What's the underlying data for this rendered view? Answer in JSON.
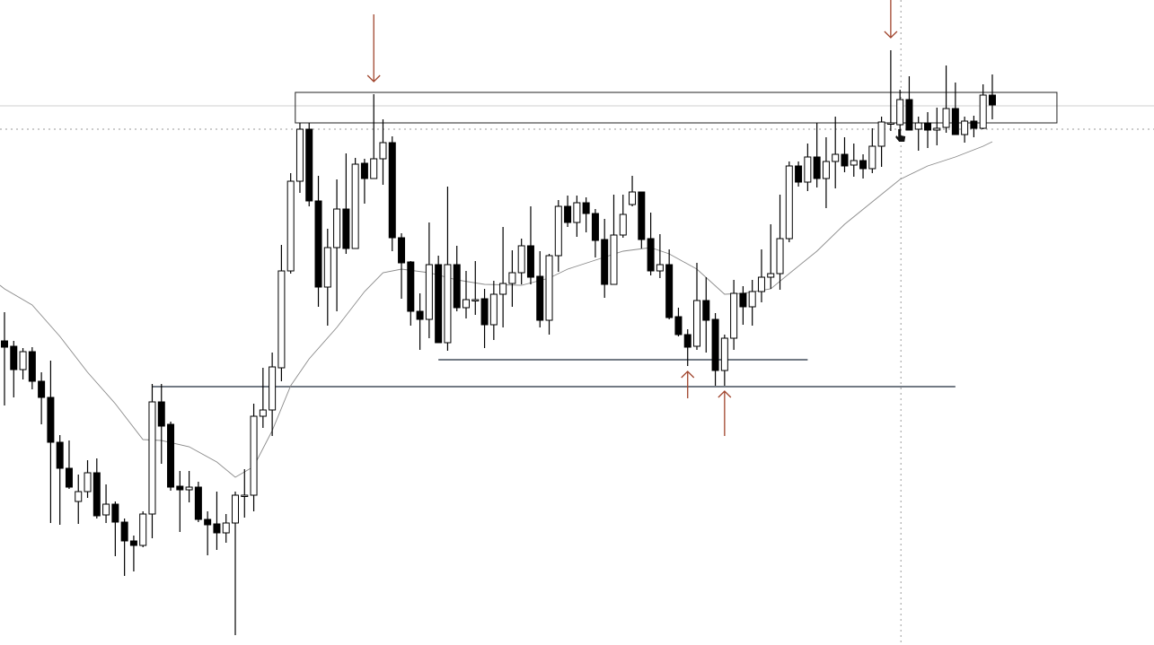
{
  "chart_data": {
    "type": "candlestick",
    "title": "",
    "xlabel": "",
    "ylabel": "",
    "grid": false,
    "colors": {
      "bull_body": "#ffffff",
      "bear_body": "#000000",
      "wick": "#000000",
      "moving_average": "#8a8a8a",
      "annotation_arrow": "#a0442c",
      "level_line": "#1f2a3a",
      "dotted_line": "#9a9a9a"
    },
    "candles_ohlc": [
      [
        340,
        372,
        268,
        333
      ],
      [
        334,
        340,
        277,
        308
      ],
      [
        308,
        332,
        297,
        328
      ],
      [
        328,
        333,
        286,
        295
      ],
      [
        295,
        305,
        247,
        277
      ],
      [
        277,
        318,
        137,
        227
      ],
      [
        227,
        235,
        135,
        198
      ],
      [
        198,
        229,
        175,
        177
      ],
      [
        161,
        191,
        136,
        172
      ],
      [
        172,
        207,
        165,
        193
      ],
      [
        193,
        209,
        142,
        145
      ],
      [
        146,
        180,
        137,
        158
      ],
      [
        158,
        161,
        100,
        138
      ],
      [
        138,
        142,
        78,
        117
      ],
      [
        117,
        123,
        83,
        112
      ],
      [
        112,
        150,
        110,
        147
      ],
      [
        147,
        292,
        120,
        272
      ],
      [
        272,
        292,
        203,
        245
      ],
      [
        247,
        250,
        173,
        177
      ],
      [
        178,
        195,
        127,
        174
      ],
      [
        174,
        195,
        160,
        177
      ],
      [
        177,
        183,
        138,
        141
      ],
      [
        141,
        150,
        101,
        135
      ],
      [
        136,
        172,
        107,
        126
      ],
      [
        126,
        147,
        115,
        137
      ],
      [
        137,
        172,
        12,
        168
      ],
      [
        168,
        197,
        143,
        168
      ],
      [
        168,
        270,
        150,
        256
      ],
      [
        256,
        310,
        243,
        263
      ],
      [
        263,
        327,
        234,
        311
      ],
      [
        310,
        447,
        295,
        418
      ],
      [
        418,
        527,
        415,
        518
      ],
      [
        518,
        583,
        505,
        576
      ],
      [
        576,
        583,
        490,
        496
      ],
      [
        496,
        524,
        378,
        400
      ],
      [
        400,
        465,
        357,
        444
      ],
      [
        444,
        520,
        373,
        487
      ],
      [
        487,
        549,
        437,
        443
      ],
      [
        443,
        544,
        443,
        537
      ],
      [
        538,
        543,
        493,
        521
      ],
      [
        521,
        615,
        521,
        543
      ],
      [
        543,
        587,
        514,
        561
      ],
      [
        561,
        568,
        440,
        455
      ],
      [
        455,
        460,
        387,
        427
      ],
      [
        428,
        429,
        357,
        373
      ],
      [
        373,
        393,
        330,
        364
      ],
      [
        364,
        472,
        343,
        425
      ],
      [
        425,
        435,
        338,
        338
      ],
      [
        338,
        512,
        329,
        425
      ],
      [
        425,
        446,
        373,
        377
      ],
      [
        377,
        418,
        365,
        386
      ],
      [
        386,
        429,
        369,
        386
      ],
      [
        387,
        398,
        332,
        358
      ],
      [
        358,
        407,
        341,
        392
      ],
      [
        392,
        467,
        355,
        404
      ],
      [
        404,
        441,
        378,
        416
      ],
      [
        416,
        454,
        403,
        446
      ],
      [
        446,
        490,
        403,
        411
      ],
      [
        412,
        440,
        355,
        363
      ],
      [
        363,
        437,
        347,
        435
      ],
      [
        435,
        497,
        417,
        490
      ],
      [
        490,
        502,
        467,
        472
      ],
      [
        472,
        502,
        456,
        494
      ],
      [
        494,
        500,
        461,
        482
      ],
      [
        482,
        487,
        433,
        452
      ],
      [
        453,
        476,
        388,
        403
      ],
      [
        403,
        503,
        403,
        458
      ],
      [
        458,
        503,
        455,
        481
      ],
      [
        492,
        524,
        490,
        506
      ],
      [
        506,
        506,
        443,
        453
      ],
      [
        454,
        483,
        413,
        418
      ],
      [
        418,
        459,
        410,
        425
      ],
      [
        425,
        442,
        364,
        366
      ],
      [
        367,
        377,
        345,
        347
      ],
      [
        347,
        353,
        312,
        333
      ],
      [
        334,
        427,
        330,
        385
      ],
      [
        385,
        411,
        327,
        363
      ],
      [
        364,
        371,
        290,
        307
      ],
      [
        307,
        347,
        290,
        343
      ],
      [
        343,
        408,
        330,
        393
      ],
      [
        393,
        401,
        358,
        378
      ],
      [
        378,
        408,
        357,
        395
      ],
      [
        395,
        442,
        383,
        411
      ],
      [
        411,
        470,
        398,
        415
      ],
      [
        415,
        503,
        397,
        454
      ],
      [
        454,
        540,
        450,
        535
      ],
      [
        535,
        540,
        512,
        517
      ],
      [
        517,
        560,
        507,
        545
      ],
      [
        545,
        583,
        511,
        521
      ],
      [
        521,
        567,
        488,
        540
      ],
      [
        540,
        590,
        510,
        548
      ],
      [
        548,
        567,
        528,
        535
      ],
      [
        536,
        560,
        523,
        541
      ],
      [
        541,
        548,
        521,
        532
      ],
      [
        532,
        577,
        527,
        557
      ],
      [
        557,
        590,
        534,
        584
      ],
      [
        583,
        664,
        574,
        583
      ],
      [
        581,
        620,
        570,
        609
      ],
      [
        609,
        635,
        575,
        575
      ],
      [
        576,
        590,
        552,
        583
      ],
      [
        583,
        595,
        555,
        575
      ],
      [
        575,
        600,
        558,
        577
      ],
      [
        578,
        647,
        572,
        599
      ],
      [
        599,
        628,
        570,
        570
      ],
      [
        570,
        590,
        561,
        585
      ],
      [
        585,
        591,
        567,
        577
      ],
      [
        577,
        626,
        576,
        614
      ],
      [
        614,
        637,
        587,
        603
      ]
    ],
    "moving_average": [
      [
        0,
        398
      ],
      [
        3,
        380
      ],
      [
        6,
        345
      ],
      [
        9,
        305
      ],
      [
        12,
        270
      ],
      [
        15,
        230
      ],
      [
        17,
        229
      ],
      [
        20,
        222
      ],
      [
        23,
        205
      ],
      [
        25,
        188
      ],
      [
        27,
        200
      ],
      [
        29,
        240
      ],
      [
        31,
        290
      ],
      [
        33,
        320
      ],
      [
        36,
        355
      ],
      [
        39,
        395
      ],
      [
        41,
        416
      ],
      [
        43,
        420
      ],
      [
        46,
        416
      ],
      [
        49,
        408
      ],
      [
        52,
        403
      ],
      [
        56,
        402
      ],
      [
        59,
        410
      ],
      [
        61,
        420
      ],
      [
        64,
        430
      ],
      [
        67,
        440
      ],
      [
        70,
        444
      ],
      [
        72,
        437
      ],
      [
        75,
        420
      ],
      [
        78,
        392
      ],
      [
        80,
        393
      ],
      [
        83,
        398
      ],
      [
        85,
        415
      ],
      [
        88,
        440
      ],
      [
        91,
        470
      ],
      [
        94,
        495
      ],
      [
        97,
        520
      ],
      [
        100,
        535
      ],
      [
        103,
        545
      ],
      [
        106,
        557
      ],
      [
        107,
        562
      ]
    ],
    "resistance_zone": {
      "top": 617,
      "bottom": 583,
      "from_candle": 31.5,
      "to_candle": 114
    },
    "support_lines": [
      {
        "level": 289,
        "from_candle": 16,
        "to_candle": 103
      },
      {
        "level": 319,
        "from_candle": 47,
        "to_candle": 87
      }
    ],
    "reference_lines": {
      "dotted_level": 576,
      "gray_level": 602,
      "crosshair_candle": 97.1
    },
    "arrows": [
      {
        "direction": "down",
        "candle": 40
      },
      {
        "direction": "down",
        "candle": 96
      },
      {
        "direction": "up",
        "candle": 74
      },
      {
        "direction": "up",
        "candle": 78
      }
    ]
  }
}
